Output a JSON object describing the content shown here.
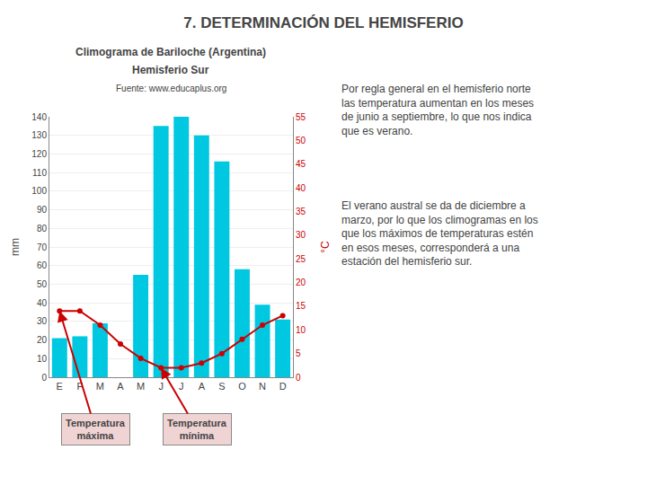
{
  "chart_data": {
    "type": "bar",
    "title": "7. DETERMINACIÓN DEL HEMISFERIO",
    "categories": [
      "E",
      "F",
      "M",
      "A",
      "M",
      "J",
      "J",
      "A",
      "S",
      "O",
      "N",
      "D"
    ],
    "series": [
      {
        "type": "bar",
        "color": "#00c8e0",
        "values": [
          21,
          22,
          29,
          0,
          55,
          135,
          140,
          130,
          116,
          58,
          39,
          31
        ]
      },
      {
        "type": "line",
        "axis": "y2",
        "color": "#cc0000",
        "marker": "circle",
        "values": [
          14,
          14,
          11,
          7,
          4,
          2,
          2,
          3,
          5,
          8,
          11,
          13
        ]
      }
    ],
    "ylabel": "mm",
    "y2label": "°C",
    "ylim": [
      0,
      140
    ],
    "yticks": [
      0,
      10,
      20,
      30,
      40,
      50,
      60,
      70,
      80,
      90,
      100,
      110,
      120,
      130,
      140
    ],
    "y2lim": [
      0,
      55
    ],
    "y2ticks": [
      0,
      5,
      10,
      15,
      20,
      25,
      30,
      35,
      40,
      45,
      50,
      55
    ],
    "grid": true,
    "annotations": [
      "Climograma de Bariloche (Argentina)",
      "Hemisferio Sur",
      "Fuente: www.educaplus.org",
      "Temperatura\nmáxima",
      "Temperatura\nmínima",
      "Por regla general en el hemisferio norte\nlas temperatura aumentan en los meses\nde junio a septiembre, lo que nos indica\nque es verano.",
      "El verano austral se da de diciembre a\nmarzo, por lo que los climogramas en los\nque los máximos de temperaturas estén\nen esos meses, corresponderá a una\nestación del hemisferio sur."
    ]
  }
}
